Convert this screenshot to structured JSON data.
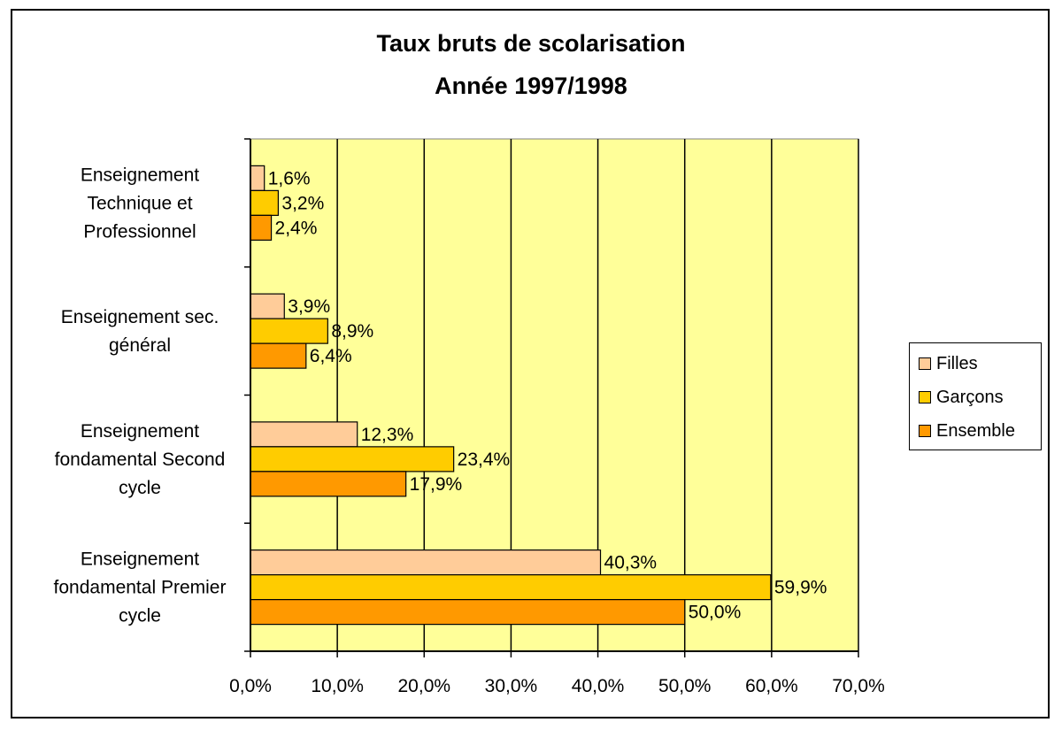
{
  "chart_data": {
    "type": "bar",
    "orientation": "horizontal",
    "title": "Taux bruts de scolarisation",
    "subtitle": "Année 1997/1998",
    "categories": [
      [
        "Enseignement",
        "Technique et",
        "Professionnel"
      ],
      [
        "Enseignement sec.",
        "général"
      ],
      [
        "Enseignement",
        "fondamental Second",
        "cycle"
      ],
      [
        "Enseignement",
        "fondamental Premier",
        "cycle"
      ]
    ],
    "series": [
      {
        "name": "Filles",
        "color": "#ffcc99",
        "values": [
          1.6,
          3.9,
          12.3,
          40.3
        ],
        "labels": [
          "1,6%",
          "3,9%",
          "12,3%",
          "40,3%"
        ]
      },
      {
        "name": "Garçons",
        "color": "#ffcc00",
        "values": [
          3.2,
          8.9,
          23.4,
          59.9
        ],
        "labels": [
          "3,2%",
          "8,9%",
          "23,4%",
          "59,9%"
        ]
      },
      {
        "name": "Ensemble",
        "color": "#ff9900",
        "values": [
          2.4,
          6.4,
          17.9,
          50.0
        ],
        "labels": [
          "2,4%",
          "6,4%",
          "17,9%",
          "50,0%"
        ]
      }
    ],
    "xlim": [
      0,
      70
    ],
    "xticks": [
      0,
      10,
      20,
      30,
      40,
      50,
      60,
      70
    ],
    "xtick_labels": [
      "0,0%",
      "10,0%",
      "20,0%",
      "30,0%",
      "40,0%",
      "50,0%",
      "60,0%",
      "70,0%"
    ],
    "grid": true,
    "plot_background": "#ffff99",
    "legend_position": "right"
  }
}
